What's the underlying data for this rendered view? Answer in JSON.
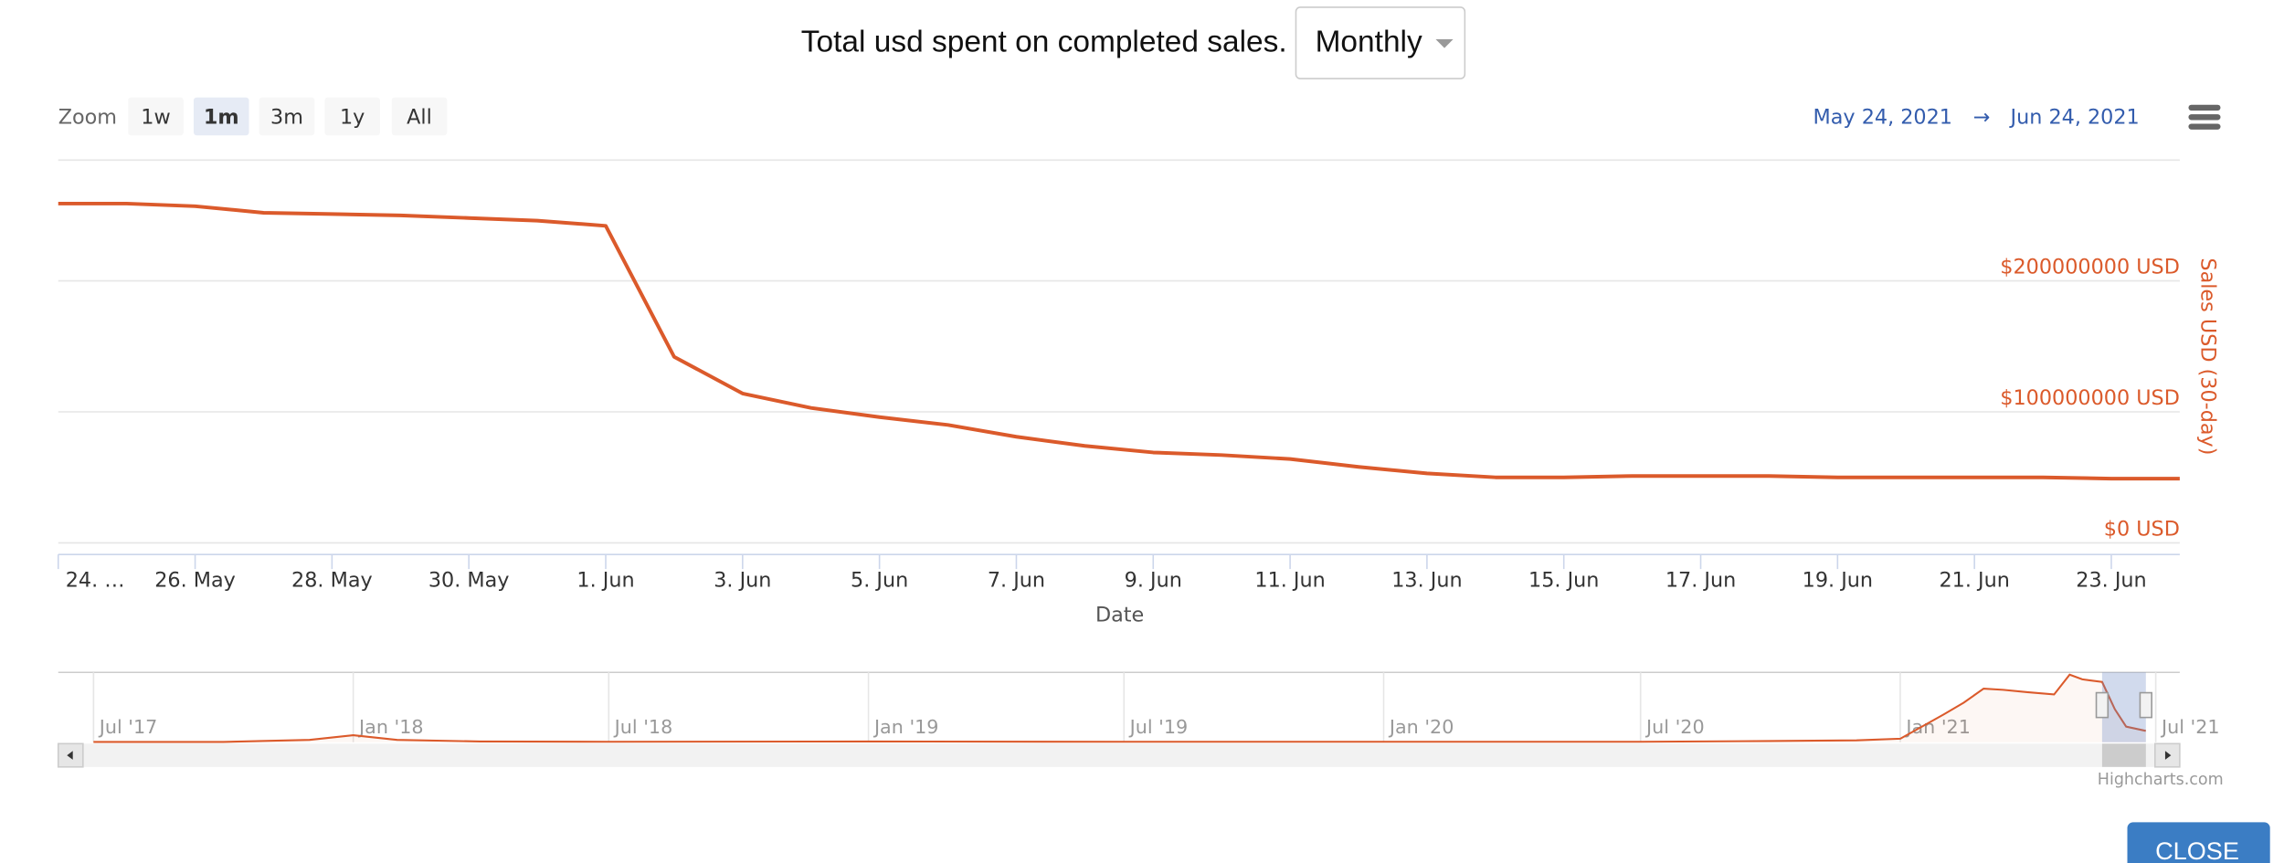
{
  "header": {
    "title": "Total usd spent on completed sales.",
    "dropdown": "Monthly"
  },
  "toolbar": {
    "zoom_label": "Zoom",
    "zoom_buttons": [
      "1w",
      "1m",
      "3m",
      "1y",
      "All"
    ],
    "selected_zoom": 1,
    "range_from": "May 24, 2021",
    "range_arrow": "→",
    "range_to": "Jun 24, 2021"
  },
  "chart_data": {
    "type": "line",
    "x_title": "Date",
    "y_title": "Sales USD (30-day)",
    "color": "#db5a2b",
    "x": [
      "2021-05-24",
      "2021-05-25",
      "2021-05-26",
      "2021-05-27",
      "2021-05-28",
      "2021-05-29",
      "2021-05-30",
      "2021-05-31",
      "2021-06-01",
      "2021-06-02",
      "2021-06-03",
      "2021-06-04",
      "2021-06-05",
      "2021-06-06",
      "2021-06-07",
      "2021-06-08",
      "2021-06-09",
      "2021-06-10",
      "2021-06-11",
      "2021-06-12",
      "2021-06-13",
      "2021-06-14",
      "2021-06-15",
      "2021-06-16",
      "2021-06-17",
      "2021-06-18",
      "2021-06-19",
      "2021-06-20",
      "2021-06-21",
      "2021-06-22",
      "2021-06-23",
      "2021-06-24"
    ],
    "values": [
      259000000,
      259000000,
      257000000,
      252000000,
      251000000,
      250000000,
      248000000,
      246000000,
      242000000,
      142000000,
      114000000,
      103000000,
      96000000,
      90000000,
      81000000,
      74000000,
      69000000,
      67000000,
      64000000,
      58000000,
      53000000,
      50000000,
      50000000,
      51000000,
      51000000,
      51000000,
      50000000,
      50000000,
      50000000,
      50000000,
      49000000,
      49000000
    ],
    "xlim": [
      "2021-05-24",
      "2021-06-24"
    ],
    "xticks": [
      {
        "value": "2021-05-24",
        "label": "24. …"
      },
      {
        "value": "2021-05-26",
        "label": "26. May"
      },
      {
        "value": "2021-05-28",
        "label": "28. May"
      },
      {
        "value": "2021-05-30",
        "label": "30. May"
      },
      {
        "value": "2021-06-01",
        "label": "1. Jun"
      },
      {
        "value": "2021-06-03",
        "label": "3. Jun"
      },
      {
        "value": "2021-06-05",
        "label": "5. Jun"
      },
      {
        "value": "2021-06-07",
        "label": "7. Jun"
      },
      {
        "value": "2021-06-09",
        "label": "9. Jun"
      },
      {
        "value": "2021-06-11",
        "label": "11. Jun"
      },
      {
        "value": "2021-06-13",
        "label": "13. Jun"
      },
      {
        "value": "2021-06-15",
        "label": "15. Jun"
      },
      {
        "value": "2021-06-17",
        "label": "17. Jun"
      },
      {
        "value": "2021-06-19",
        "label": "19. Jun"
      },
      {
        "value": "2021-06-21",
        "label": "21. Jun"
      },
      {
        "value": "2021-06-23",
        "label": "23. Jun"
      }
    ],
    "ylim": [
      0,
      290000000
    ],
    "yticks": [
      {
        "value": 0,
        "label": "$0 USD"
      },
      {
        "value": 100000000,
        "label": "$100000000 USD"
      },
      {
        "value": 200000000,
        "label": "$200000000 USD"
      }
    ],
    "grid": true,
    "y_axis_side": "right",
    "navigator": {
      "x": [
        "2017-07-01",
        "2017-10-01",
        "2017-12-01",
        "2018-01-01",
        "2018-02-01",
        "2018-04-01",
        "2018-07-01",
        "2019-01-01",
        "2019-07-01",
        "2020-01-01",
        "2020-07-01",
        "2020-10-01",
        "2020-12-01",
        "2021-01-01",
        "2021-02-01",
        "2021-02-15",
        "2021-03-01",
        "2021-03-15",
        "2021-04-01",
        "2021-04-20",
        "2021-05-01",
        "2021-05-10",
        "2021-05-24",
        "2021-06-02",
        "2021-06-10",
        "2021-06-24"
      ],
      "values": [
        1000000,
        1000000,
        10000000,
        30000000,
        10000000,
        3000000,
        2000000,
        3000000,
        2000000,
        2000000,
        2000000,
        5000000,
        8000000,
        15000000,
        120000000,
        170000000,
        230000000,
        225000000,
        215000000,
        205000000,
        290000000,
        270000000,
        259000000,
        142000000,
        67000000,
        49000000
      ],
      "xlim": [
        "2017-06-06",
        "2021-07-18"
      ],
      "ylim": [
        0,
        300000000
      ],
      "xticks": [
        {
          "value": "2017-07-01",
          "label": "Jul '17"
        },
        {
          "value": "2018-01-01",
          "label": "Jan '18"
        },
        {
          "value": "2018-07-01",
          "label": "Jul '18"
        },
        {
          "value": "2019-01-01",
          "label": "Jan '19"
        },
        {
          "value": "2019-07-01",
          "label": "Jul '19"
        },
        {
          "value": "2020-01-01",
          "label": "Jan '20"
        },
        {
          "value": "2020-07-01",
          "label": "Jul '20"
        },
        {
          "value": "2021-01-01",
          "label": "Jan '21"
        },
        {
          "value": "2021-07-01",
          "label": "Jul '21"
        }
      ]
    }
  },
  "credits": "Highcharts.com",
  "footer": {
    "close": "CLOSE"
  }
}
